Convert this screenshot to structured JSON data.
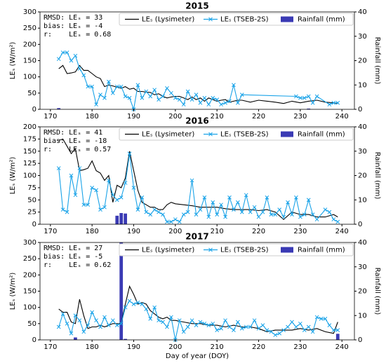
{
  "chart_data": [
    {
      "type": "line",
      "title": "2015",
      "ylabel": "LEₛ (W/m²)",
      "y2label": "Rainfall (mm)",
      "annotations": [
        "RMSD: LEₛ = 33",
        "bias: LEₛ = -4",
        "r:    LEₛ = 0.68"
      ],
      "xlim": [
        167.5,
        243
      ],
      "xticks": [
        170,
        180,
        190,
        200,
        210,
        220,
        230,
        240
      ],
      "ylim": [
        0,
        300
      ],
      "yticks": [
        0,
        50,
        100,
        150,
        200,
        250,
        300
      ],
      "y2lim": [
        0,
        40
      ],
      "y2ticks": [
        0,
        10,
        20,
        30,
        40
      ],
      "series": [
        {
          "name": "LEₛ (Lysimeter)",
          "color": "#000000",
          "x": [
            172,
            173,
            174,
            175,
            176,
            177,
            178,
            179,
            180,
            181,
            182,
            183,
            184,
            185,
            186,
            187,
            188,
            189,
            190,
            191,
            192,
            193,
            194,
            195,
            196,
            197,
            198,
            199,
            200,
            201,
            202,
            203,
            204,
            205,
            206,
            207,
            208,
            209,
            210,
            211,
            212,
            213,
            214,
            215,
            216,
            217,
            218,
            219,
            220,
            222,
            224,
            226,
            228,
            230,
            232,
            234,
            236,
            238,
            239
          ],
          "values": [
            125,
            135,
            110,
            112,
            115,
            135,
            120,
            120,
            110,
            100,
            95,
            70,
            75,
            72,
            68,
            65,
            70,
            62,
            65,
            55,
            55,
            53,
            52,
            45,
            48,
            40,
            35,
            38,
            40,
            40,
            35,
            30,
            38,
            30,
            35,
            25,
            35,
            30,
            25,
            28,
            30,
            22,
            25,
            28,
            28,
            25,
            22,
            25,
            28,
            25,
            22,
            18,
            25,
            20,
            25,
            28,
            22,
            20,
            18
          ]
        },
        {
          "name": "LEₛ (TSEB-2S)",
          "color": "#1aa3e8",
          "x": [
            172,
            173,
            174,
            175,
            176,
            177,
            178,
            179,
            180,
            181,
            182,
            183,
            184,
            185,
            186,
            187,
            188,
            189,
            190,
            191,
            192,
            193,
            194,
            195,
            196,
            197,
            198,
            199,
            200,
            201,
            202,
            203,
            204,
            205,
            206,
            207,
            208,
            209,
            210,
            211,
            212,
            213,
            214,
            215,
            216,
            229,
            230,
            231,
            232,
            233,
            234,
            237,
            238,
            239
          ],
          "values": [
            155,
            175,
            175,
            150,
            165,
            125,
            105,
            70,
            70,
            15,
            45,
            35,
            85,
            50,
            70,
            70,
            40,
            35,
            0,
            75,
            35,
            55,
            40,
            60,
            30,
            40,
            65,
            50,
            35,
            30,
            15,
            55,
            30,
            45,
            20,
            35,
            15,
            35,
            30,
            15,
            20,
            25,
            75,
            20,
            45,
            40,
            35,
            35,
            40,
            20,
            40,
            15,
            20,
            20
          ]
        },
        {
          "name": "Rainfall (mm)",
          "color": "#3a3ab4",
          "axis": "y2",
          "x": [
            172,
            232
          ],
          "values": [
            0.5,
            0.3
          ]
        }
      ]
    },
    {
      "type": "line",
      "title": "2016",
      "ylabel": "LEₛ (W/m²)",
      "y2label": "Rainfall (mm)",
      "annotations": [
        "RMSD: LEₛ = 41",
        "bias: LEₛ = -18",
        "r:    LEₛ = 0.57"
      ],
      "xlim": [
        167.5,
        243
      ],
      "xticks": [
        170,
        180,
        190,
        200,
        210,
        220,
        230,
        240
      ],
      "ylim": [
        0,
        200
      ],
      "yticks": [
        0,
        25,
        50,
        75,
        100,
        125,
        150,
        175,
        200
      ],
      "y2lim": [
        0,
        40
      ],
      "y2ticks": [
        0,
        10,
        20,
        30,
        40
      ],
      "series": [
        {
          "name": "LEₛ (Lysimeter)",
          "color": "#000000",
          "x": [
            172,
            173,
            174,
            175,
            176,
            177,
            178,
            179,
            180,
            181,
            182,
            183,
            184,
            185,
            186,
            187,
            188,
            189,
            190,
            191,
            192,
            193,
            194,
            195,
            196,
            197,
            198,
            199,
            200,
            202,
            204,
            206,
            208,
            210,
            212,
            214,
            216,
            218,
            220,
            222,
            224,
            226,
            228,
            230,
            232,
            234,
            236,
            238,
            239
          ],
          "values": [
            172,
            175,
            160,
            145,
            155,
            110,
            112,
            115,
            130,
            110,
            105,
            90,
            100,
            45,
            80,
            75,
            95,
            150,
            110,
            70,
            45,
            40,
            35,
            35,
            30,
            30,
            40,
            45,
            42,
            40,
            38,
            35,
            35,
            35,
            32,
            30,
            30,
            30,
            28,
            30,
            25,
            10,
            25,
            20,
            20,
            15,
            15,
            20,
            15
          ]
        },
        {
          "name": "LEₛ (TSEB-2S)",
          "color": "#1aa3e8",
          "x": [
            172,
            173,
            174,
            175,
            176,
            177,
            178,
            179,
            180,
            181,
            182,
            183,
            184,
            185,
            186,
            187,
            188,
            189,
            190,
            191,
            192,
            193,
            194,
            195,
            196,
            197,
            198,
            199,
            200,
            201,
            202,
            203,
            204,
            205,
            206,
            207,
            208,
            209,
            210,
            211,
            212,
            213,
            214,
            215,
            216,
            217,
            218,
            219,
            220,
            221,
            222,
            223,
            224,
            225,
            226,
            227,
            228,
            229,
            230,
            231,
            232,
            233,
            234,
            236,
            237,
            238,
            239
          ],
          "values": [
            115,
            30,
            25,
            100,
            60,
            115,
            40,
            40,
            75,
            70,
            30,
            35,
            90,
            60,
            50,
            55,
            85,
            145,
            75,
            30,
            55,
            25,
            20,
            30,
            25,
            20,
            5,
            5,
            10,
            5,
            20,
            25,
            90,
            20,
            30,
            55,
            15,
            45,
            20,
            40,
            15,
            55,
            30,
            45,
            25,
            60,
            25,
            35,
            15,
            25,
            55,
            20,
            20,
            30,
            15,
            45,
            20,
            55,
            15,
            20,
            50,
            20,
            10,
            30,
            25,
            10,
            5
          ]
        },
        {
          "name": "Rainfall (mm)",
          "color": "#3a3ab4",
          "axis": "y2",
          "x": [
            186,
            187,
            188
          ],
          "values": [
            3.5,
            4.6,
            4.4
          ]
        }
      ]
    },
    {
      "type": "line",
      "title": "2017",
      "xlabel": "Day of year (DOY)",
      "ylabel": "LEₛ (W/m²)",
      "y2label": "Rainfall (mm)",
      "annotations": [
        "RMSD: LEₛ = 27",
        "bias: LEₛ = -5",
        "r:    LEₛ = 0.62"
      ],
      "xlim": [
        167.5,
        243
      ],
      "xticks": [
        170,
        180,
        190,
        200,
        210,
        220,
        230,
        240
      ],
      "ylim": [
        0,
        300
      ],
      "yticks": [
        0,
        50,
        100,
        150,
        200,
        250,
        300
      ],
      "y2lim": [
        0,
        40
      ],
      "y2ticks": [
        0,
        10,
        20,
        30,
        40
      ],
      "series": [
        {
          "name": "LEₛ (Lysimeter)",
          "color": "#000000",
          "x": [
            172,
            173,
            174,
            175,
            176,
            177,
            178,
            179,
            180,
            181,
            182,
            183,
            184,
            185,
            186,
            187,
            188,
            189,
            190,
            191,
            192,
            193,
            194,
            195,
            196,
            197,
            198,
            199,
            200,
            202,
            204,
            206,
            208,
            210,
            212,
            214,
            216,
            218,
            220,
            222,
            224,
            226,
            228,
            230,
            232,
            234,
            236,
            238,
            239
          ],
          "values": [
            95,
            85,
            85,
            55,
            50,
            125,
            75,
            35,
            40,
            40,
            45,
            40,
            45,
            50,
            50,
            50,
            110,
            165,
            140,
            110,
            115,
            110,
            90,
            80,
            70,
            65,
            70,
            60,
            60,
            55,
            50,
            50,
            45,
            45,
            40,
            45,
            40,
            40,
            35,
            25,
            30,
            30,
            30,
            35,
            30,
            35,
            25,
            20,
            55
          ]
        },
        {
          "name": "LEₛ (TSEB-2S)",
          "color": "#1aa3e8",
          "x": [
            172,
            173,
            174,
            175,
            176,
            177,
            178,
            179,
            180,
            181,
            182,
            183,
            184,
            185,
            186,
            187,
            188,
            189,
            190,
            191,
            192,
            193,
            194,
            195,
            196,
            197,
            198,
            199,
            200,
            201,
            202,
            203,
            204,
            205,
            206,
            207,
            208,
            209,
            210,
            211,
            212,
            213,
            214,
            215,
            216,
            217,
            218,
            219,
            220,
            221,
            222,
            223,
            224,
            225,
            226,
            227,
            228,
            229,
            230,
            231,
            232,
            233,
            234,
            235,
            236,
            237,
            238,
            239
          ],
          "values": [
            40,
            80,
            50,
            20,
            75,
            60,
            25,
            45,
            85,
            60,
            40,
            70,
            45,
            60,
            45,
            50,
            100,
            120,
            110,
            115,
            110,
            95,
            65,
            100,
            60,
            55,
            40,
            70,
            0,
            60,
            25,
            40,
            60,
            45,
            55,
            50,
            45,
            50,
            30,
            35,
            60,
            40,
            30,
            55,
            35,
            40,
            40,
            60,
            35,
            45,
            30,
            25,
            15,
            20,
            30,
            40,
            55,
            40,
            50,
            30,
            40,
            25,
            70,
            65,
            65,
            45,
            30,
            30
          ]
        },
        {
          "name": "Rainfall (mm)",
          "color": "#3a3ab4",
          "axis": "y2",
          "x": [
            176,
            187,
            188,
            239
          ],
          "values": [
            1,
            40,
            0.4,
            2.5
          ]
        }
      ]
    }
  ]
}
